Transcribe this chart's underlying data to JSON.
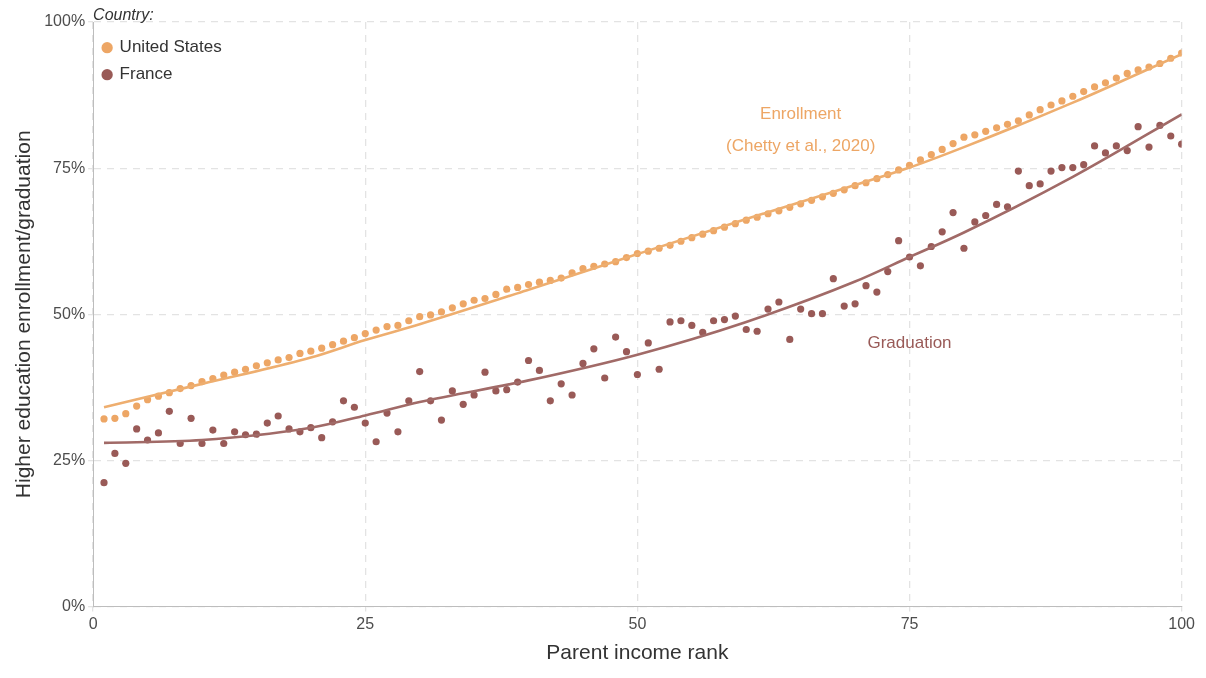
{
  "chart_data": {
    "type": "scatter",
    "xlabel": "Parent income rank",
    "ylabel": "Higher education enrollment/graduation",
    "legend_title": "Country:",
    "legend": "top left",
    "grid": true,
    "marker": "circle",
    "xlim": [
      0,
      100
    ],
    "xticks": [
      0,
      25,
      50,
      75,
      100
    ],
    "ylim": [
      0,
      100
    ],
    "yticks": [
      {
        "value": 0,
        "label": "0%"
      },
      {
        "value": 25,
        "label": "25%"
      },
      {
        "value": 50,
        "label": "50%"
      },
      {
        "value": 75,
        "label": "75%"
      },
      {
        "value": 100,
        "label": "100%"
      }
    ],
    "x": [
      1,
      2,
      3,
      4,
      5,
      6,
      7,
      8,
      9,
      10,
      11,
      12,
      13,
      14,
      15,
      16,
      17,
      18,
      19,
      20,
      21,
      22,
      23,
      24,
      25,
      26,
      27,
      28,
      29,
      30,
      31,
      32,
      33,
      34,
      35,
      36,
      37,
      38,
      39,
      40,
      41,
      42,
      43,
      44,
      45,
      46,
      47,
      48,
      49,
      50,
      51,
      52,
      53,
      54,
      55,
      56,
      57,
      58,
      59,
      60,
      61,
      62,
      63,
      64,
      65,
      66,
      67,
      68,
      69,
      70,
      71,
      72,
      73,
      74,
      75,
      76,
      77,
      78,
      79,
      80,
      81,
      82,
      83,
      84,
      85,
      86,
      87,
      88,
      89,
      90,
      91,
      92,
      93,
      94,
      95,
      96,
      97,
      98,
      99,
      100
    ],
    "series": [
      {
        "name": "United States",
        "color": "#eda665",
        "values": [
          32.1,
          32.2,
          33.0,
          34.3,
          35.4,
          36.0,
          36.6,
          37.3,
          37.8,
          38.5,
          39.0,
          39.6,
          40.1,
          40.6,
          41.2,
          41.7,
          42.2,
          42.6,
          43.3,
          43.7,
          44.2,
          44.8,
          45.4,
          46.0,
          46.7,
          47.3,
          47.9,
          48.1,
          48.9,
          49.6,
          49.9,
          50.4,
          51.1,
          51.8,
          52.4,
          52.7,
          53.4,
          54.3,
          54.6,
          55.1,
          55.5,
          55.8,
          56.2,
          57.1,
          57.8,
          58.2,
          58.6,
          59.0,
          59.7,
          60.4,
          60.8,
          61.3,
          61.8,
          62.5,
          63.1,
          63.7,
          64.3,
          64.9,
          65.5,
          66.1,
          66.6,
          67.2,
          67.7,
          68.3,
          68.9,
          69.5,
          70.1,
          70.7,
          71.3,
          72.0,
          72.5,
          73.2,
          73.9,
          74.7,
          75.5,
          76.4,
          77.3,
          78.2,
          79.2,
          80.3,
          80.7,
          81.3,
          81.9,
          82.5,
          83.1,
          84.1,
          85.0,
          85.8,
          86.5,
          87.3,
          88.1,
          88.9,
          89.6,
          90.4,
          91.2,
          91.8,
          92.3,
          92.9,
          93.8,
          94.7
        ]
      },
      {
        "name": "France",
        "color": "#995a57",
        "values": [
          21.2,
          26.2,
          24.5,
          30.4,
          28.5,
          29.7,
          33.4,
          27.9,
          32.2,
          27.9,
          30.2,
          27.9,
          29.9,
          29.4,
          29.5,
          31.4,
          32.6,
          30.4,
          29.9,
          30.6,
          28.9,
          31.6,
          35.2,
          34.1,
          31.4,
          28.2,
          33.1,
          29.9,
          35.2,
          40.2,
          35.2,
          31.9,
          36.9,
          34.6,
          36.2,
          40.1,
          36.9,
          37.1,
          38.4,
          42.1,
          40.4,
          35.2,
          38.1,
          36.2,
          41.6,
          44.1,
          39.1,
          46.1,
          43.6,
          39.7,
          45.1,
          40.6,
          48.7,
          48.9,
          48.1,
          46.9,
          48.9,
          49.1,
          49.7,
          47.4,
          47.1,
          50.9,
          52.1,
          45.7,
          50.9,
          50.1,
          50.1,
          56.1,
          51.4,
          51.8,
          54.9,
          53.8,
          57.3,
          62.6,
          59.8,
          58.3,
          61.6,
          64.1,
          67.4,
          61.3,
          65.8,
          66.9,
          68.8,
          68.4,
          74.5,
          72.0,
          72.3,
          74.5,
          75.1,
          75.1,
          75.6,
          78.8,
          77.6,
          78.8,
          78.0,
          82.1,
          78.6,
          82.3,
          80.5,
          79.1
        ]
      },
      {
        "type": "line",
        "marker": "none",
        "color": "#eeae6f",
        "x": [
          1,
          10,
          20,
          25,
          30,
          40,
          50,
          60,
          70,
          75,
          80,
          90,
          100
        ],
        "values": [
          34.1,
          38.1,
          42.6,
          45.6,
          48.3,
          54.2,
          60.3,
          66.3,
          72.1,
          75.1,
          78.6,
          86.2,
          94.5
        ]
      },
      {
        "type": "line",
        "marker": "none",
        "color": "#a16a67",
        "x": [
          1,
          10,
          20,
          25,
          30,
          40,
          50,
          60,
          70,
          75,
          80,
          90,
          100
        ],
        "values": [
          28.0,
          28.5,
          30.6,
          32.7,
          35.0,
          38.7,
          43.1,
          48.7,
          55.6,
          59.8,
          64.0,
          73.5,
          84.2
        ]
      }
    ],
    "annotations": [
      "Enrollment\n(Chetty et al., 2020)",
      "Graduation"
    ]
  }
}
